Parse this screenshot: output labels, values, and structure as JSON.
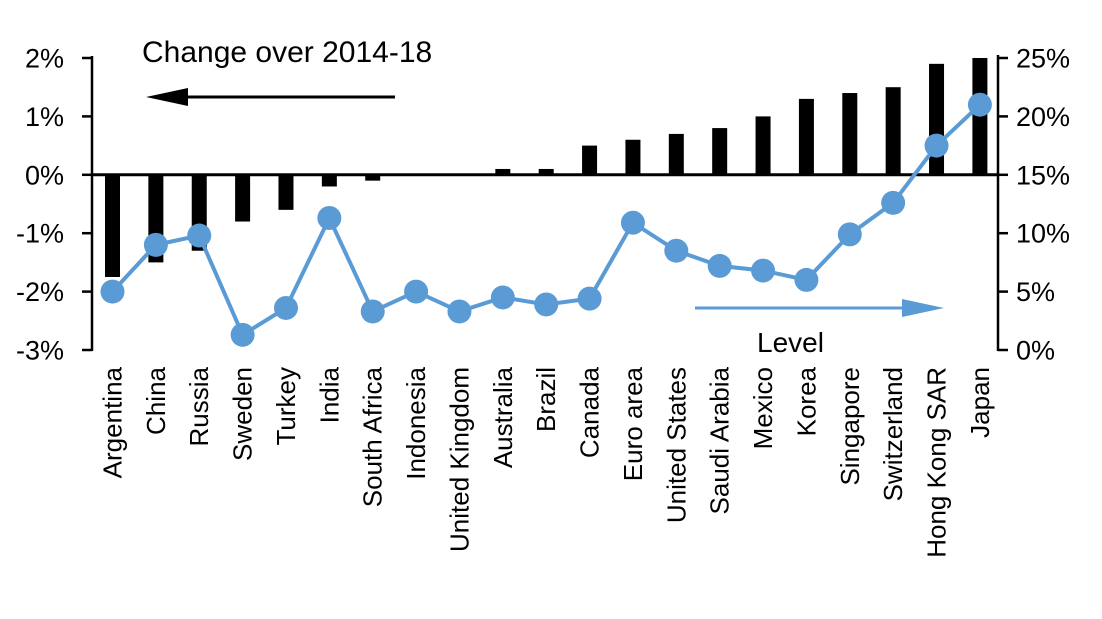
{
  "chart_data": {
    "type": "bar",
    "subtype": "bar+line combo, dual axis",
    "background": "#FFFFFF",
    "grid": false,
    "categories": [
      "Argentina",
      "China",
      "Russia",
      "Sweden",
      "Turkey",
      "India",
      "South Africa",
      "Indonesia",
      "United Kingdom",
      "Australia",
      "Brazil",
      "Canada",
      "Euro area",
      "United States",
      "Saudi Arabia",
      "Mexico",
      "Korea",
      "Singapore",
      "Switzerland",
      "Hong Kong SAR",
      "Japan"
    ],
    "series": [
      {
        "name": "Change over 2014-18",
        "type": "bar",
        "axis": "left",
        "color": "#000000",
        "values": [
          -1.75,
          -1.5,
          -1.3,
          -0.8,
          -0.6,
          -0.2,
          -0.1,
          0,
          0,
          0.1,
          0.1,
          0.5,
          0.6,
          0.7,
          0.8,
          1.0,
          1.3,
          1.4,
          1.5,
          1.9,
          2.0
        ]
      },
      {
        "name": "Level",
        "type": "line",
        "axis": "right",
        "color": "#5B9BD5",
        "values": [
          5.0,
          9.0,
          9.8,
          1.3,
          3.6,
          11.3,
          3.3,
          5.0,
          3.3,
          4.5,
          3.9,
          4.4,
          10.9,
          8.5,
          7.2,
          6.8,
          6.0,
          9.9,
          12.6,
          17.5,
          21.0
        ]
      }
    ],
    "left_axis": {
      "min": -3,
      "max": 2,
      "tick_step": 1,
      "tick_labels": [
        "2%",
        "1%",
        "0%",
        "-1%",
        "-2%",
        "-3%"
      ]
    },
    "right_axis": {
      "min": 0,
      "max": 25,
      "tick_step": 5,
      "tick_labels": [
        "25%",
        "20%",
        "15%",
        "10%",
        "5%",
        "0%"
      ]
    },
    "annotations": {
      "change": {
        "text": "Change over 2014-18",
        "arrow_direction": "left",
        "color": "#000000"
      },
      "level": {
        "text": "Level",
        "arrow_direction": "right",
        "color": "#5B9BD5"
      }
    }
  }
}
